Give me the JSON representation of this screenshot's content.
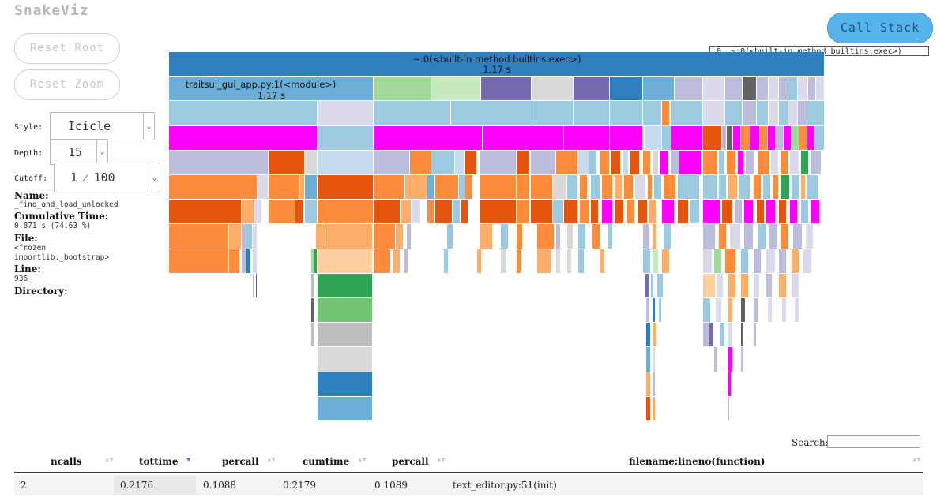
{
  "app": {
    "brand": "SnakeViz"
  },
  "controls": {
    "reset_root": "Reset Root",
    "reset_zoom": "Reset Zoom",
    "call_stack": "Call Stack",
    "style_label": "Style:",
    "style_value": "Icicle",
    "depth_label": "Depth:",
    "depth_value": "15",
    "cutoff_label": "Cutoff:",
    "cutoff_value": "1 ⁄ 100"
  },
  "call_stack_panel": {
    "entry": "0. ~:0(<built-in method builtins.exec>)"
  },
  "info": {
    "name_label": "Name:",
    "name_value": "_find_and_load_unlocked",
    "cumtime_label": "Cumulative Time:",
    "cumtime_value": "0.871 s (74.63 %)",
    "file_label": "File:",
    "file_value_1": "<frozen",
    "file_value_2": "importlib._bootstrap>",
    "line_label": "Line:",
    "line_value": "936",
    "directory_label": "Directory:"
  },
  "flame": {
    "root_name": "~:0(<built-in method builtins.exec>)",
    "root_time": "1.17 s",
    "module_name": "traitsui_gui_app.py:1(<module>)",
    "module_time": "1.17 s"
  },
  "table": {
    "search_label": "Search:",
    "columns": [
      "ncalls",
      "tottime",
      "percall",
      "cumtime",
      "percall",
      "filename:lineno(function)"
    ],
    "sorted_indicator": "▼",
    "rows": [
      {
        "ncalls": "2",
        "tottime": "0.2176",
        "percall": "0.1088",
        "cumtime": "0.2179",
        "percall2": "0.1089",
        "function": "text_editor.py:51(init)"
      }
    ]
  }
}
